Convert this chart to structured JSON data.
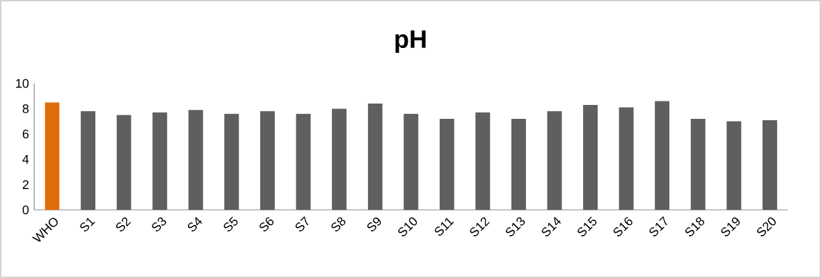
{
  "chart_data": {
    "type": "bar",
    "title": "pH",
    "categories": [
      "WHO",
      "S1",
      "S2",
      "S3",
      "S4",
      "S5",
      "S6",
      "S7",
      "S8",
      "S9",
      "S10",
      "S11",
      "S12",
      "S13",
      "S14",
      "S15",
      "S16",
      "S17",
      "S18",
      "S19",
      "S20"
    ],
    "values": [
      8.5,
      7.8,
      7.5,
      7.7,
      7.9,
      7.6,
      7.8,
      7.6,
      8.0,
      8.4,
      7.6,
      7.2,
      7.7,
      7.2,
      7.8,
      8.3,
      8.1,
      8.6,
      7.2,
      7.0,
      7.1
    ],
    "colors": [
      "#e36c0a",
      "#5f5f5f",
      "#5f5f5f",
      "#5f5f5f",
      "#5f5f5f",
      "#5f5f5f",
      "#5f5f5f",
      "#5f5f5f",
      "#5f5f5f",
      "#5f5f5f",
      "#5f5f5f",
      "#5f5f5f",
      "#5f5f5f",
      "#5f5f5f",
      "#5f5f5f",
      "#5f5f5f",
      "#5f5f5f",
      "#5f5f5f",
      "#5f5f5f",
      "#5f5f5f",
      "#5f5f5f"
    ],
    "ylim": [
      0,
      10
    ],
    "yticks": [
      0,
      2,
      4,
      6,
      8,
      10
    ],
    "grid": false
  }
}
